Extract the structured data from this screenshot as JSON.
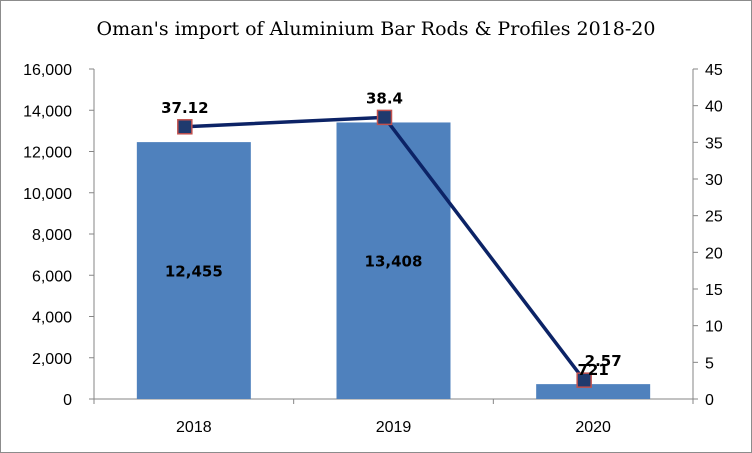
{
  "chart_data": {
    "type": "bar+line",
    "title": "Oman's import of Aluminium Bar Rods & Profiles 2018-20",
    "categories": [
      "2018",
      "2019",
      "2020"
    ],
    "series": [
      {
        "type": "bar",
        "axis": "left",
        "values": [
          12455,
          13408,
          721
        ],
        "labels": [
          "12,455",
          "13,408",
          "721"
        ],
        "color": "#4f81bd"
      },
      {
        "type": "line",
        "axis": "right",
        "values": [
          37.12,
          38.4,
          2.57
        ],
        "labels": [
          "37.12",
          "38.4",
          "2.57"
        ],
        "color": "#0c2366",
        "marker_fill": "#1f3a6e",
        "marker_border": "#c0504d"
      }
    ],
    "y_left": {
      "range": [
        0,
        16000
      ],
      "ticks": [
        0,
        2000,
        4000,
        6000,
        8000,
        10000,
        12000,
        14000,
        16000
      ],
      "tick_labels": [
        "0",
        "2,000",
        "4,000",
        "6,000",
        "8,000",
        "10,000",
        "12,000",
        "14,000",
        "16,000"
      ]
    },
    "y_right": {
      "range": [
        0,
        45
      ],
      "ticks": [
        0,
        5,
        10,
        15,
        20,
        25,
        30,
        35,
        40,
        45
      ],
      "tick_labels": [
        "0",
        "5",
        "10",
        "15",
        "20",
        "25",
        "30",
        "35",
        "40",
        "45"
      ]
    },
    "grid": false,
    "legend": "none"
  }
}
